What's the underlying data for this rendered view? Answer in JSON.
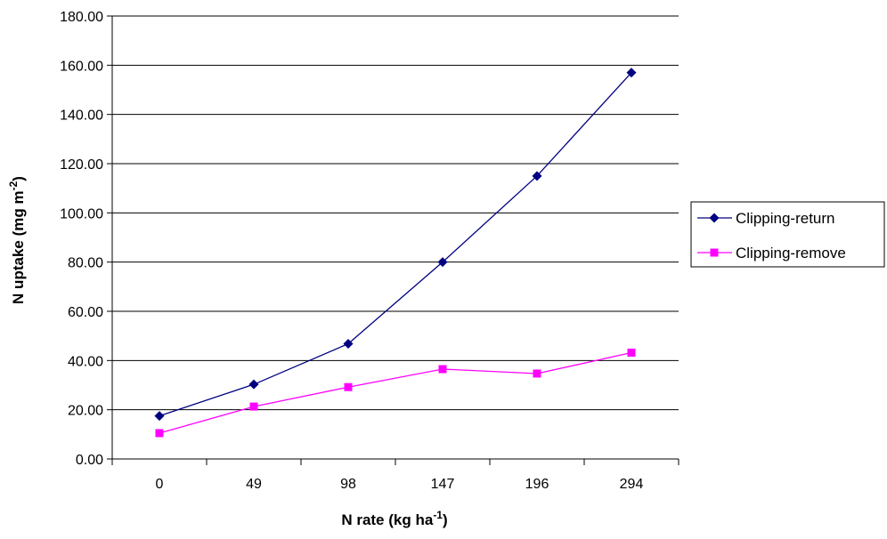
{
  "chart_data": {
    "type": "line",
    "categories": [
      "0",
      "49",
      "98",
      "147",
      "196",
      "294"
    ],
    "series": [
      {
        "name": "Clipping-return",
        "values": [
          17.5,
          30.3,
          46.8,
          80.0,
          115.0,
          157.0
        ],
        "color": "#000080",
        "marker": "diamond"
      },
      {
        "name": "Clipping-remove",
        "values": [
          10.5,
          21.3,
          29.2,
          36.5,
          34.7,
          43.2
        ],
        "color": "#ff00ff",
        "marker": "square"
      }
    ],
    "xlabel": {
      "main": "N rate (kg ha",
      "sup": "-1",
      "close": ")"
    },
    "ylabel": {
      "main": "N uptake (mg m",
      "sup": "-2",
      "close": ")"
    },
    "ylim": [
      0,
      180
    ],
    "ytick_step": 20,
    "ytick_decimals": 2,
    "grid": "horizontal",
    "legend": "right"
  }
}
